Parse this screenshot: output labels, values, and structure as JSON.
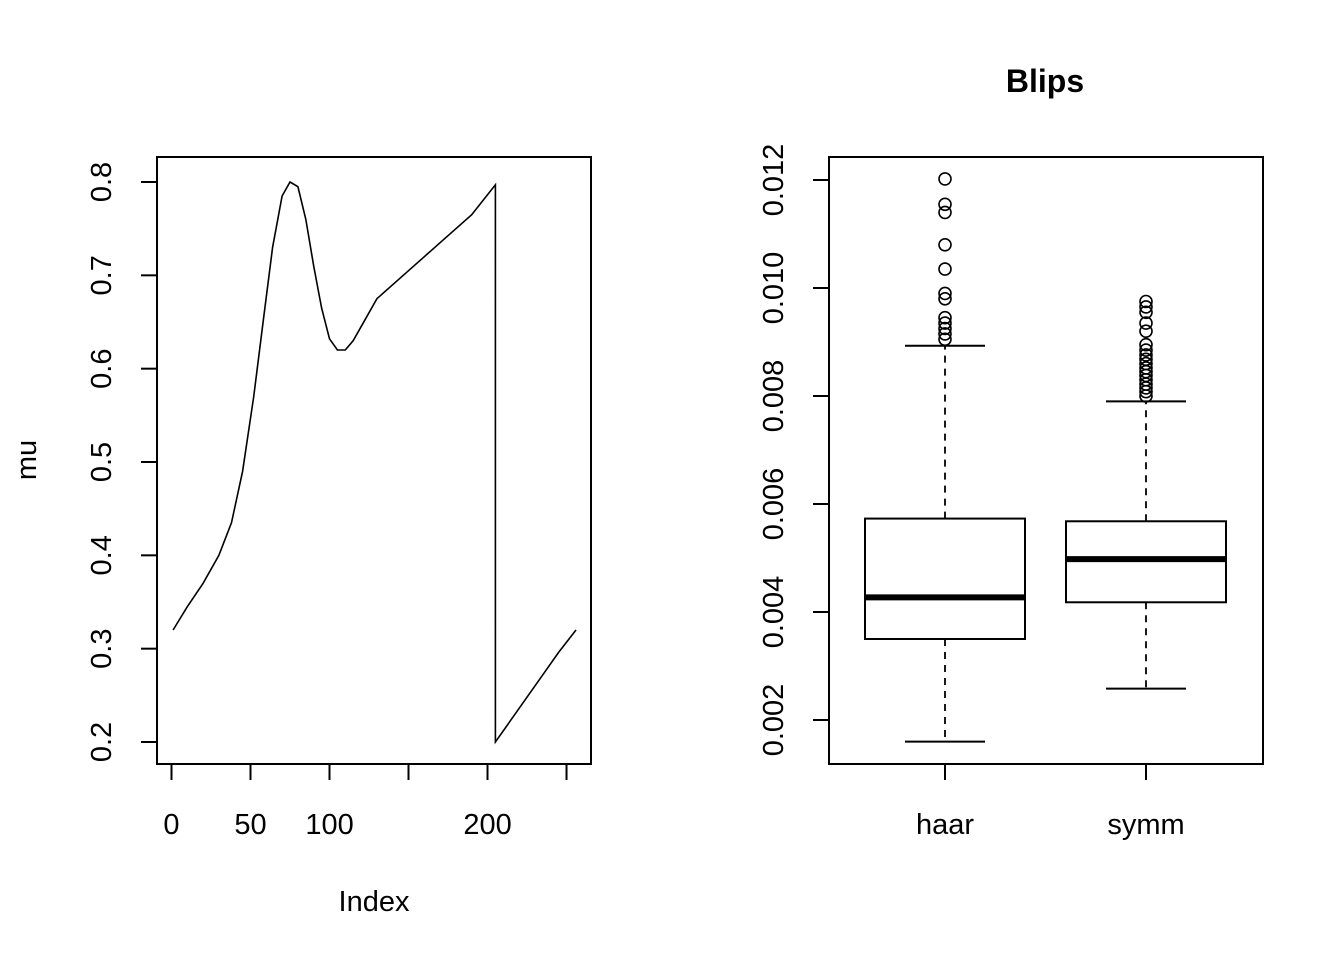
{
  "chart_data": [
    {
      "type": "line",
      "title": "",
      "xlabel": "Index",
      "ylabel": "mu",
      "xlim": [
        0,
        256
      ],
      "ylim": [
        0.2,
        0.8
      ],
      "x_ticks": [
        0,
        50,
        100,
        150,
        200,
        250
      ],
      "x_tick_labels": [
        "0",
        "50",
        "100",
        "",
        "200",
        ""
      ],
      "y_ticks": [
        0.2,
        0.3,
        0.4,
        0.5,
        0.6,
        0.7,
        0.8
      ],
      "y_tick_labels": [
        "0.2",
        "0.3",
        "0.4",
        "0.5",
        "0.6",
        "0.7",
        "0.8"
      ],
      "series": [
        {
          "x": [
            1,
            10,
            20,
            30,
            38,
            45,
            52,
            58,
            64,
            70,
            75,
            80,
            85,
            90,
            95,
            100,
            105,
            110,
            115,
            120,
            130,
            150,
            170,
            190,
            205,
            205,
            215,
            225,
            235,
            245,
            256
          ],
          "y": [
            0.32,
            0.345,
            0.37,
            0.4,
            0.435,
            0.49,
            0.57,
            0.65,
            0.73,
            0.785,
            0.8,
            0.795,
            0.76,
            0.71,
            0.665,
            0.632,
            0.62,
            0.62,
            0.63,
            0.645,
            0.675,
            0.705,
            0.735,
            0.765,
            0.797,
            0.2,
            0.224,
            0.248,
            0.272,
            0.296,
            0.32
          ]
        }
      ]
    },
    {
      "type": "box",
      "title": "Blips",
      "xlabel": "",
      "ylabel": "",
      "categories": [
        "haar",
        "symm"
      ],
      "ylim": [
        0.0015,
        0.012
      ],
      "y_ticks": [
        0.002,
        0.004,
        0.006,
        0.008,
        0.01,
        0.012
      ],
      "y_tick_labels": [
        "0.002",
        "0.004",
        "0.006",
        "0.008",
        "0.010",
        "0.012"
      ],
      "boxes": [
        {
          "name": "haar",
          "whisker_low": 0.0016,
          "q1": 0.0035,
          "median": 0.00427,
          "q3": 0.00573,
          "whisker_high": 0.00893,
          "outliers": [
            0.00905,
            0.00915,
            0.00925,
            0.00935,
            0.00945,
            0.0098,
            0.0099,
            0.01035,
            0.0108,
            0.0114,
            0.01155,
            0.01202
          ]
        },
        {
          "name": "symm",
          "whisker_low": 0.00258,
          "q1": 0.00418,
          "median": 0.00498,
          "q3": 0.00568,
          "whisker_high": 0.0079,
          "outliers": [
            0.008,
            0.00808,
            0.00815,
            0.00822,
            0.0083,
            0.00838,
            0.00845,
            0.00852,
            0.0086,
            0.00868,
            0.00876,
            0.00885,
            0.00895,
            0.0092,
            0.00935,
            0.00955,
            0.00965,
            0.00975
          ]
        }
      ]
    }
  ]
}
